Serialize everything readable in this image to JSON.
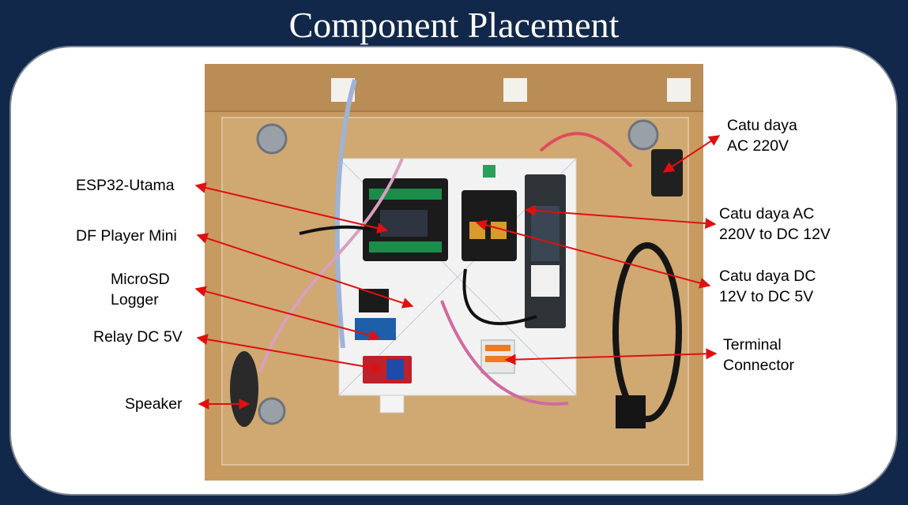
{
  "title": "Component Placement",
  "labels": {
    "esp32": "ESP32-Utama",
    "dfplayer": "DF Player Mini",
    "microsd": "MicroSD\nLogger",
    "relay": "Relay DC 5V",
    "speaker": "Speaker",
    "ac_supply": "Catu daya\nAC 220V",
    "ac_dc12": "Catu daya AC\n220V to DC 12V",
    "dc12_dc5": "Catu daya DC\n12V to DC 5V",
    "terminal": "Terminal\nConnector"
  },
  "colors": {
    "background": "#12284a",
    "panel": "#ffffff",
    "arrow": "#e01010",
    "board": "#c79a5f"
  }
}
